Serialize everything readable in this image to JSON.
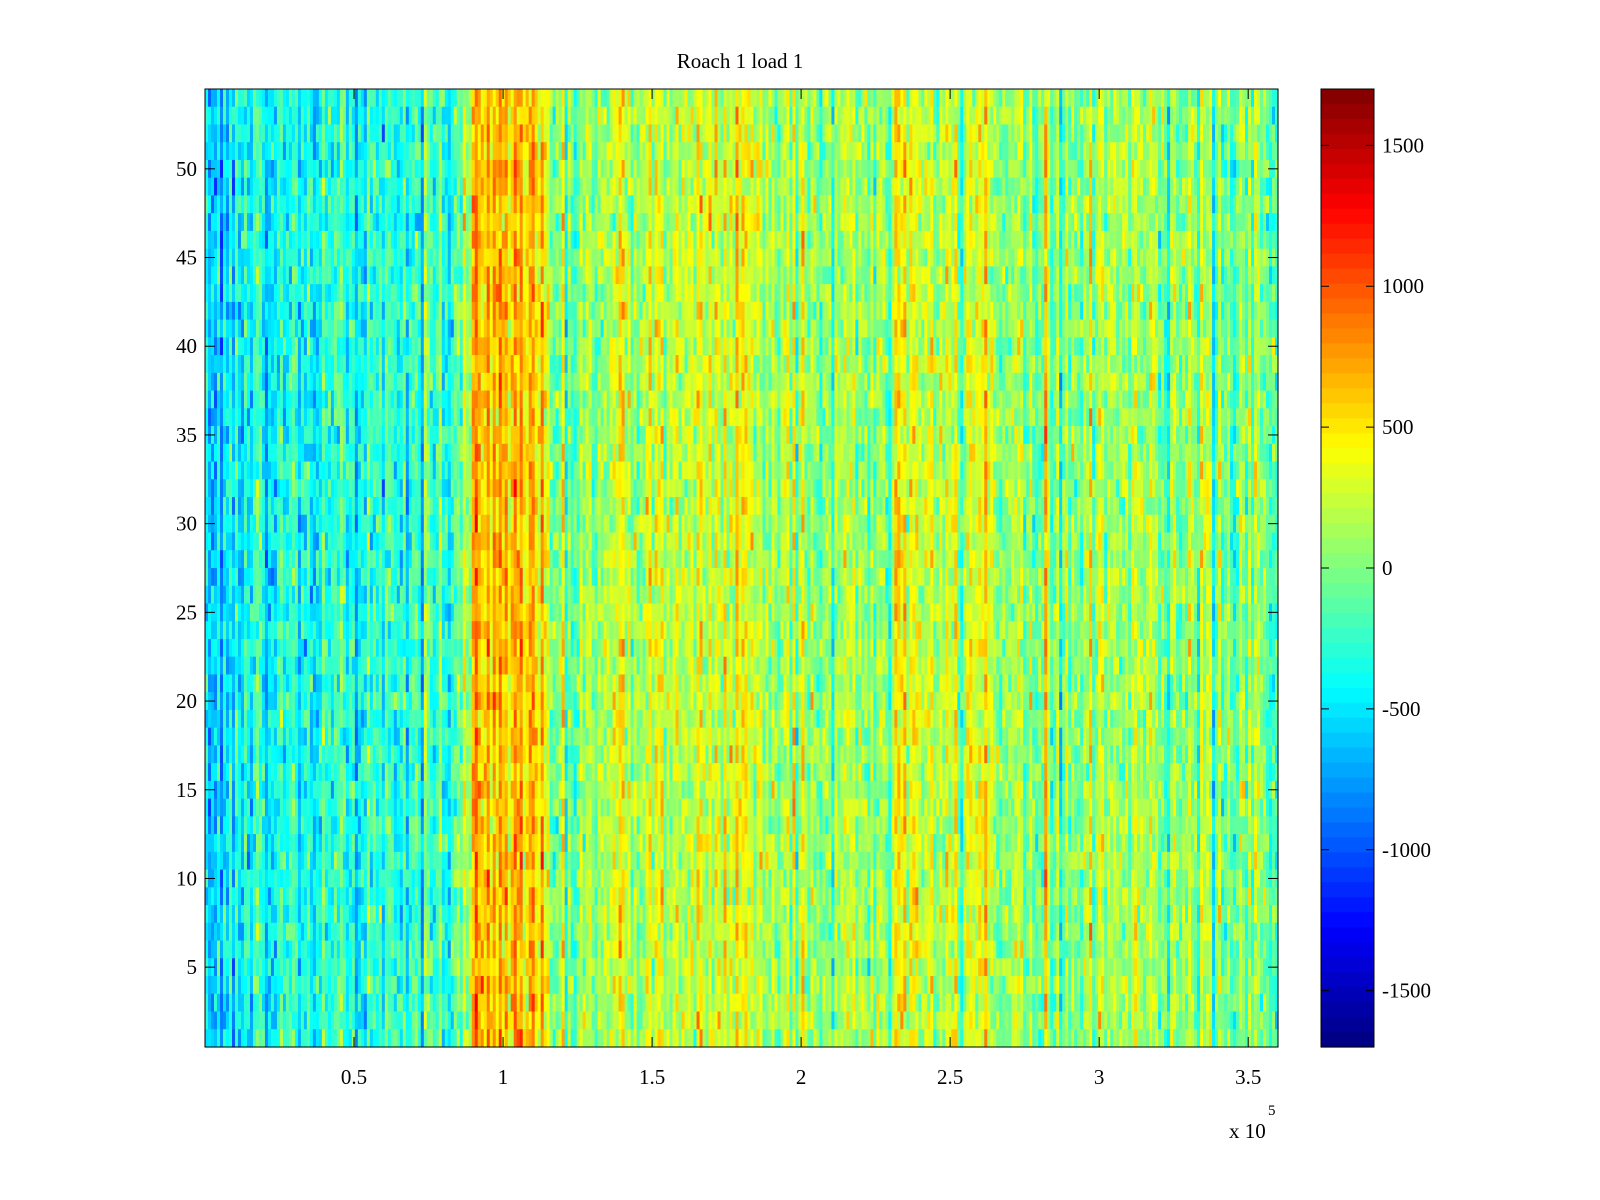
{
  "chart_data": {
    "type": "heatmap",
    "title": "Roach 1 load 1",
    "xlabel": "",
    "ylabel": "",
    "x_exponent_label": "x 10",
    "x_exponent_power": "5",
    "xlim": [
      0,
      360000
    ],
    "ylim": [
      0.5,
      54.5
    ],
    "x_ticks": [
      50000,
      100000,
      150000,
      200000,
      250000,
      300000,
      350000
    ],
    "x_tick_labels": [
      "0.5",
      "1",
      "1.5",
      "2",
      "2.5",
      "3",
      "3.5"
    ],
    "y_ticks": [
      5,
      10,
      15,
      20,
      25,
      30,
      35,
      40,
      45,
      50
    ],
    "y_tick_labels": [
      "5",
      "10",
      "15",
      "20",
      "25",
      "30",
      "35",
      "40",
      "45",
      "50"
    ],
    "rows": 54,
    "value_range": [
      -1700,
      1700
    ],
    "colormap": "jet",
    "grid": false,
    "colorbar": {
      "ticks": [
        1500,
        1000,
        500,
        0,
        -500,
        -1000,
        -1500
      ],
      "tick_labels": [
        "1500",
        "1000",
        "500",
        "0",
        "-500",
        "-1000",
        "-1500"
      ]
    },
    "band_profile": [
      {
        "x": 0,
        "value": -550
      },
      {
        "x": 3000,
        "value": -450
      },
      {
        "x": 30000,
        "value": -350
      },
      {
        "x": 60000,
        "value": -300
      },
      {
        "x": 86000,
        "value": -250
      },
      {
        "x": 89000,
        "value": 550
      },
      {
        "x": 105000,
        "value": 700
      },
      {
        "x": 112000,
        "value": 650
      },
      {
        "x": 115000,
        "value": 0
      },
      {
        "x": 135000,
        "value": 80
      },
      {
        "x": 150000,
        "value": 250
      },
      {
        "x": 170000,
        "value": 230
      },
      {
        "x": 180000,
        "value": 420
      },
      {
        "x": 188000,
        "value": 200
      },
      {
        "x": 210000,
        "value": 50
      },
      {
        "x": 230000,
        "value": 80
      },
      {
        "x": 238000,
        "value": 380
      },
      {
        "x": 244000,
        "value": 150
      },
      {
        "x": 256000,
        "value": 150
      },
      {
        "x": 262000,
        "value": 500
      },
      {
        "x": 267000,
        "value": 100
      },
      {
        "x": 290000,
        "value": 80
      },
      {
        "x": 310000,
        "value": 150
      },
      {
        "x": 340000,
        "value": 20
      },
      {
        "x": 360000,
        "value": -50
      }
    ],
    "noise_std": 260
  }
}
